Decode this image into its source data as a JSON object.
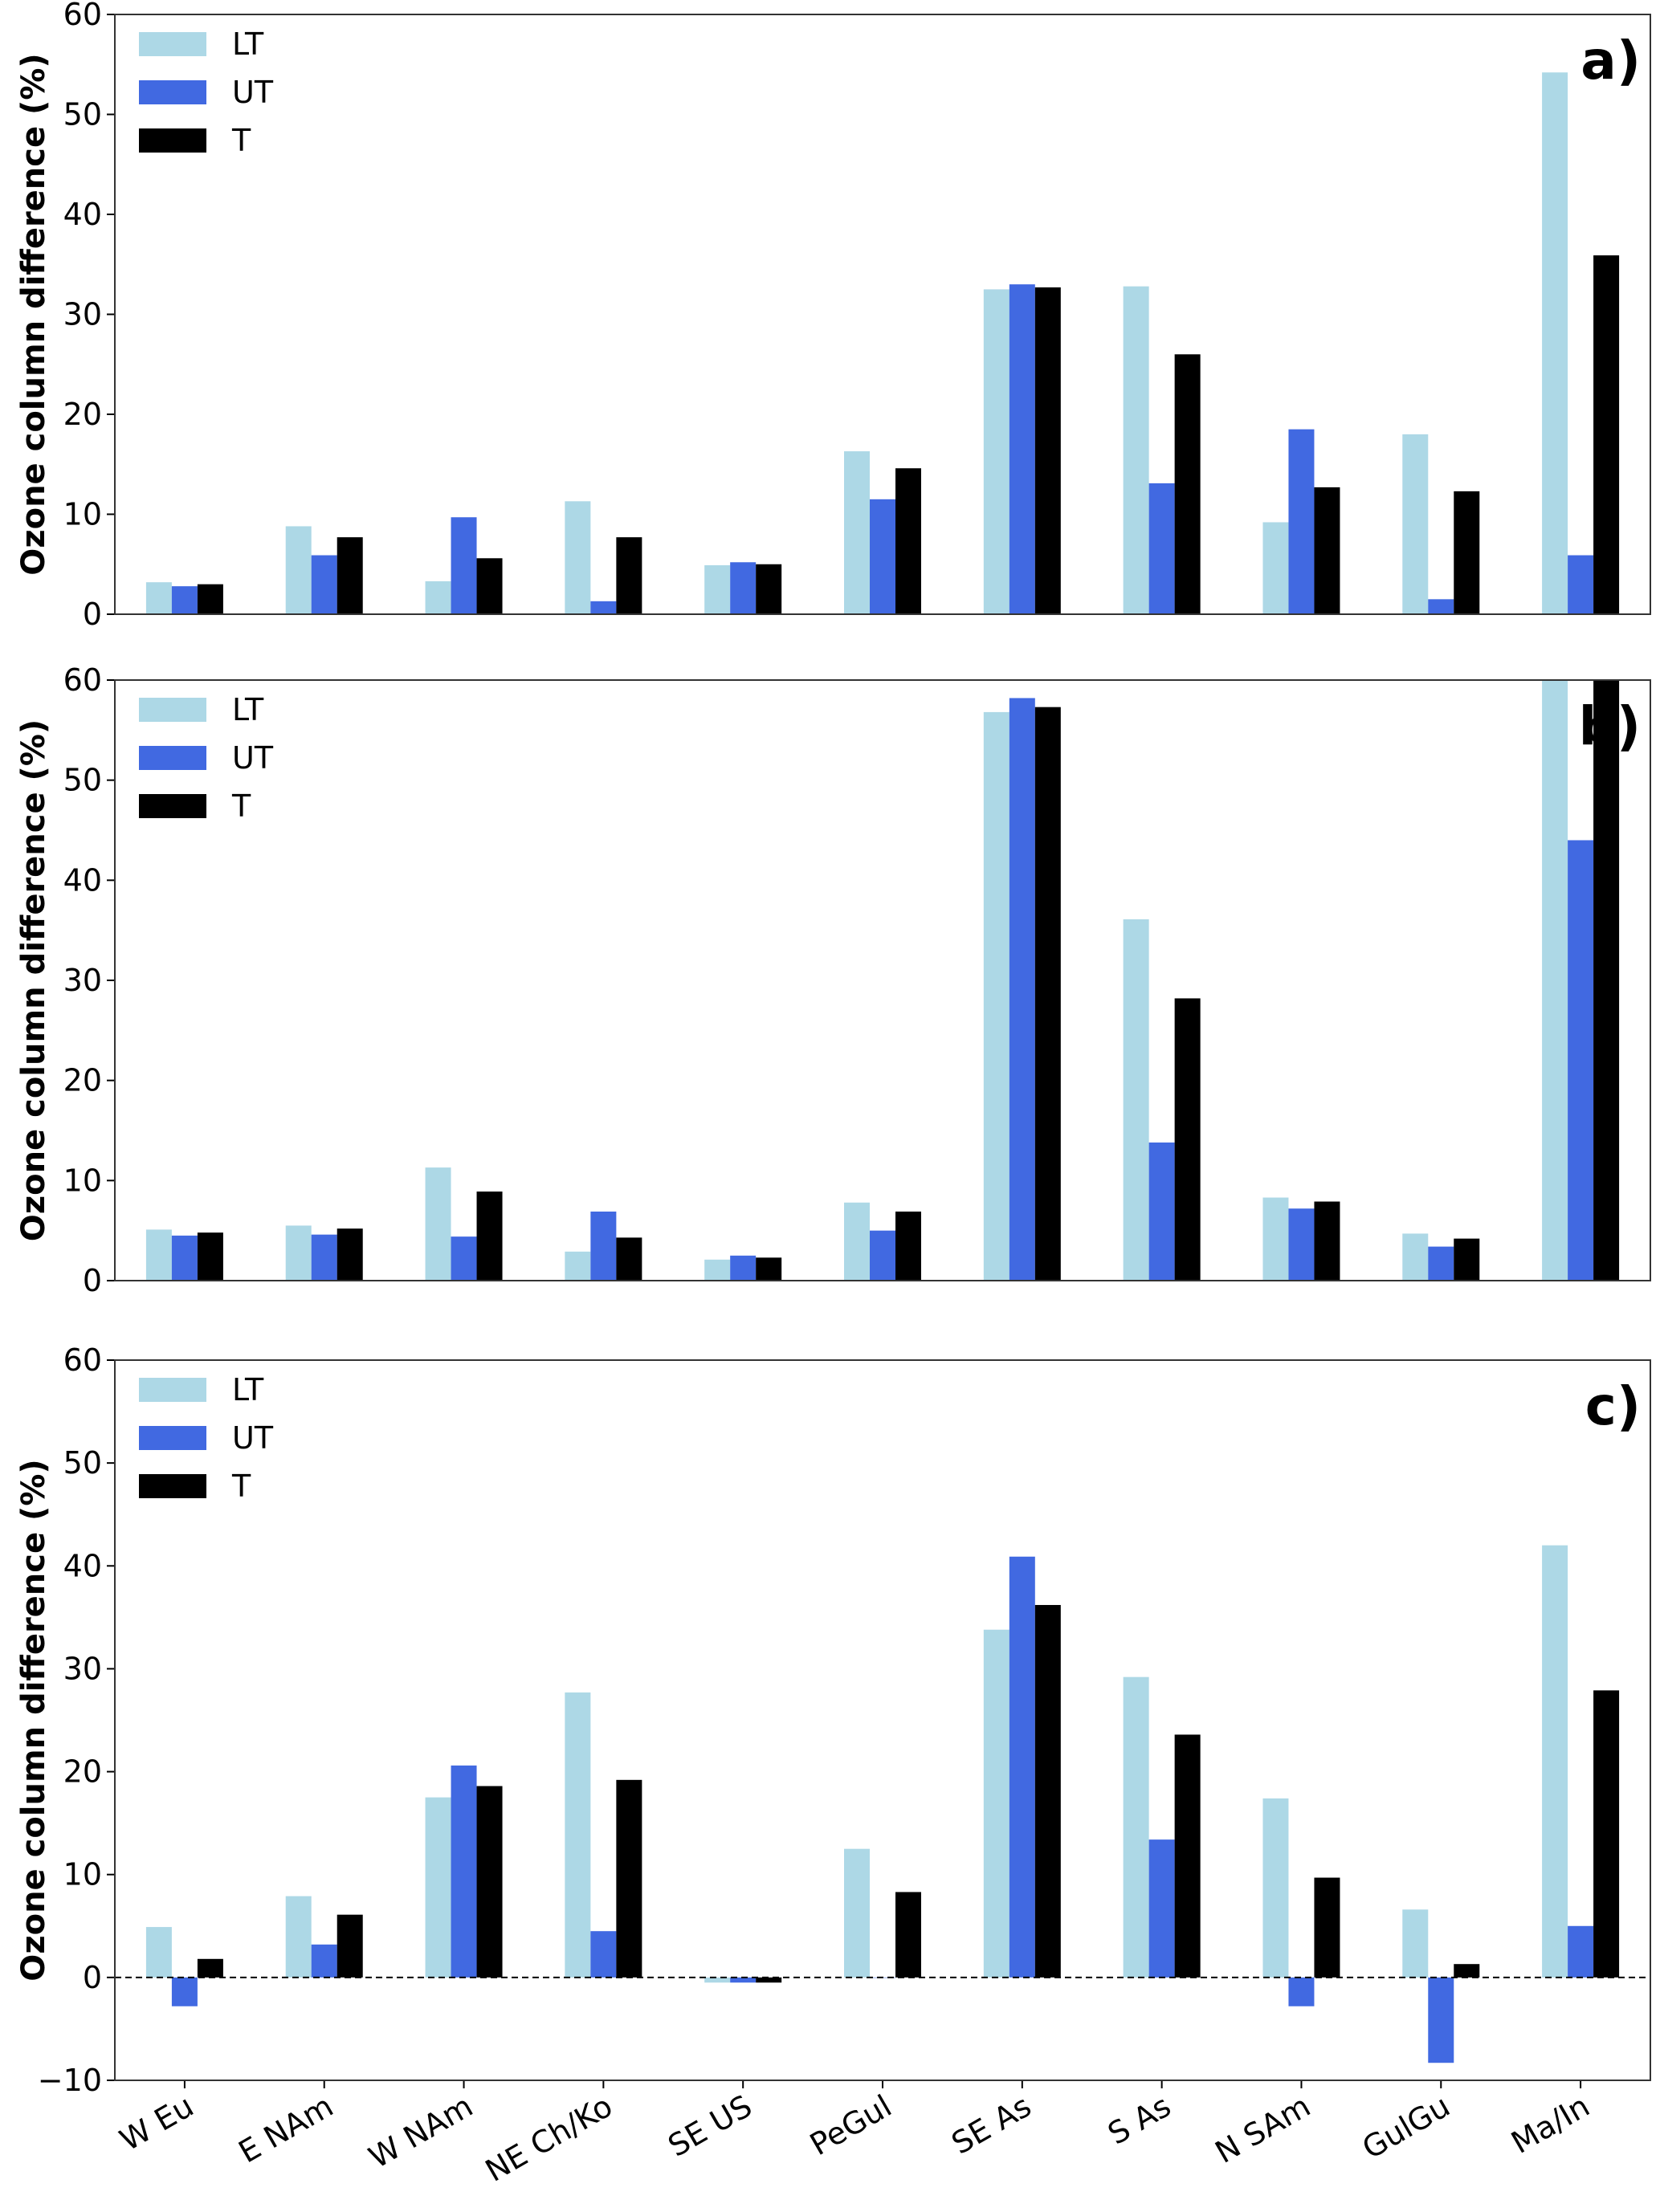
{
  "colors": {
    "LT": "#add8e6",
    "UT": "#4169e1",
    "T": "#000000"
  },
  "chart_data": [
    {
      "type": "bar",
      "panel_label": "a)",
      "ylabel": "Ozone column difference (%)",
      "xlabel": "",
      "ylim": [
        0,
        60
      ],
      "yticks": [
        "0",
        "10",
        "20",
        "30",
        "40",
        "50",
        "60"
      ],
      "categories": [
        "W Eu",
        "E NAm",
        "W NAm",
        "NE Ch/Ko",
        "SE US",
        "PeGul",
        "SE As",
        "S As",
        "N SAm",
        "GulGu",
        "Ma/In"
      ],
      "show_xtick_labels": false,
      "legend_position": "top-left",
      "series": [
        {
          "name": "LT",
          "values": [
            3.2,
            8.8,
            3.3,
            11.3,
            4.9,
            16.3,
            32.5,
            32.8,
            9.2,
            18.0,
            54.2
          ]
        },
        {
          "name": "UT",
          "values": [
            2.8,
            5.9,
            9.7,
            1.3,
            5.2,
            11.5,
            33.0,
            13.1,
            18.5,
            1.5,
            5.9
          ]
        },
        {
          "name": "T",
          "values": [
            3.0,
            7.7,
            5.6,
            7.7,
            5.0,
            14.6,
            32.7,
            26.0,
            12.7,
            12.3,
            35.9
          ]
        }
      ]
    },
    {
      "type": "bar",
      "panel_label": "b)",
      "ylabel": "Ozone column difference (%)",
      "xlabel": "",
      "ylim": [
        0,
        60
      ],
      "yticks": [
        "0",
        "10",
        "20",
        "30",
        "40",
        "50",
        "60"
      ],
      "categories": [
        "W Eu",
        "E NAm",
        "W NAm",
        "NE Ch/Ko",
        "SE US",
        "PeGul",
        "SE As",
        "S As",
        "N SAm",
        "GulGu",
        "Ma/In"
      ],
      "show_xtick_labels": false,
      "legend_position": "top-left",
      "series": [
        {
          "name": "LT",
          "values": [
            5.1,
            5.5,
            11.3,
            2.9,
            2.1,
            7.8,
            56.8,
            36.1,
            8.3,
            4.7,
            60.0
          ]
        },
        {
          "name": "UT",
          "values": [
            4.5,
            4.6,
            4.4,
            6.9,
            2.5,
            5.0,
            58.2,
            13.8,
            7.2,
            3.4,
            44.0
          ]
        },
        {
          "name": "T",
          "values": [
            4.8,
            5.2,
            8.9,
            4.3,
            2.3,
            6.9,
            57.3,
            28.2,
            7.9,
            4.2,
            60.0
          ]
        }
      ]
    },
    {
      "type": "bar",
      "panel_label": "c)",
      "ylabel": "Ozone column difference (%)",
      "xlabel": "",
      "ylim": [
        -10,
        60
      ],
      "yticks": [
        "−10",
        "0",
        "10",
        "20",
        "30",
        "40",
        "50",
        "60"
      ],
      "categories": [
        "W Eu",
        "E NAm",
        "W NAm",
        "NE Ch/Ko",
        "SE US",
        "PeGul",
        "SE As",
        "S As",
        "N SAm",
        "GulGu",
        "Ma/In"
      ],
      "show_xtick_labels": true,
      "legend_position": "top-left",
      "series": [
        {
          "name": "LT",
          "values": [
            4.9,
            7.9,
            17.5,
            27.7,
            -0.5,
            12.5,
            33.8,
            29.2,
            17.4,
            6.6,
            42.0
          ]
        },
        {
          "name": "UT",
          "values": [
            -2.8,
            3.2,
            20.6,
            4.5,
            -0.5,
            0.0,
            40.9,
            13.4,
            -2.8,
            -8.3,
            5.0
          ]
        },
        {
          "name": "T",
          "values": [
            1.8,
            6.1,
            18.6,
            19.2,
            -0.5,
            8.3,
            36.2,
            23.6,
            9.7,
            1.3,
            27.9
          ]
        }
      ]
    }
  ]
}
